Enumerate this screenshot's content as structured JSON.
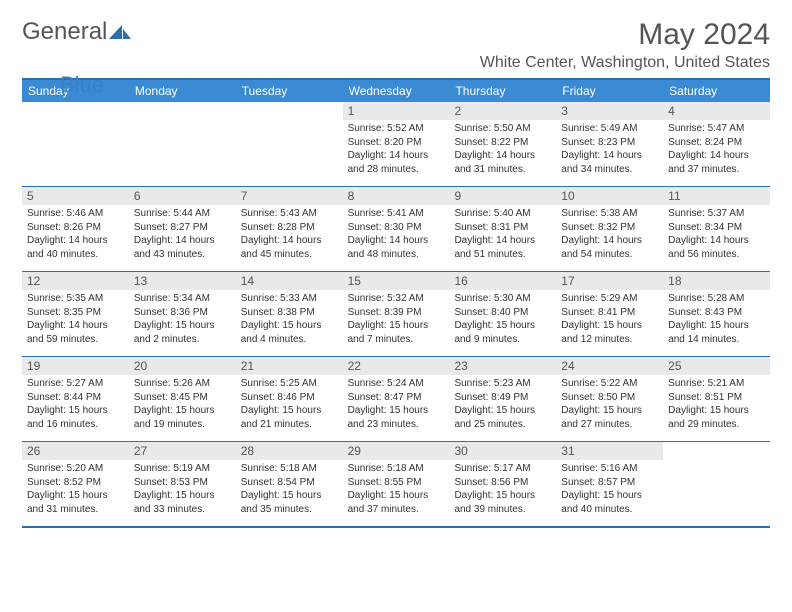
{
  "logo": {
    "word1": "General",
    "word2": "Blue"
  },
  "title": "May 2024",
  "subtitle": "White Center, Washington, United States",
  "colors": {
    "header_bg": "#3b8bd4",
    "header_border": "#2d6fb5",
    "daynum_bg": "#e9e9e9",
    "text": "#555"
  },
  "daynames": [
    "Sunday",
    "Monday",
    "Tuesday",
    "Wednesday",
    "Thursday",
    "Friday",
    "Saturday"
  ],
  "weeks": [
    [
      {
        "n": "",
        "empty": true
      },
      {
        "n": "",
        "empty": true
      },
      {
        "n": "",
        "empty": true
      },
      {
        "n": "1",
        "sunrise": "5:52 AM",
        "sunset": "8:20 PM",
        "dayh": "14",
        "daym": "28"
      },
      {
        "n": "2",
        "sunrise": "5:50 AM",
        "sunset": "8:22 PM",
        "dayh": "14",
        "daym": "31"
      },
      {
        "n": "3",
        "sunrise": "5:49 AM",
        "sunset": "8:23 PM",
        "dayh": "14",
        "daym": "34"
      },
      {
        "n": "4",
        "sunrise": "5:47 AM",
        "sunset": "8:24 PM",
        "dayh": "14",
        "daym": "37"
      }
    ],
    [
      {
        "n": "5",
        "sunrise": "5:46 AM",
        "sunset": "8:26 PM",
        "dayh": "14",
        "daym": "40"
      },
      {
        "n": "6",
        "sunrise": "5:44 AM",
        "sunset": "8:27 PM",
        "dayh": "14",
        "daym": "43"
      },
      {
        "n": "7",
        "sunrise": "5:43 AM",
        "sunset": "8:28 PM",
        "dayh": "14",
        "daym": "45"
      },
      {
        "n": "8",
        "sunrise": "5:41 AM",
        "sunset": "8:30 PM",
        "dayh": "14",
        "daym": "48"
      },
      {
        "n": "9",
        "sunrise": "5:40 AM",
        "sunset": "8:31 PM",
        "dayh": "14",
        "daym": "51"
      },
      {
        "n": "10",
        "sunrise": "5:38 AM",
        "sunset": "8:32 PM",
        "dayh": "14",
        "daym": "54"
      },
      {
        "n": "11",
        "sunrise": "5:37 AM",
        "sunset": "8:34 PM",
        "dayh": "14",
        "daym": "56"
      }
    ],
    [
      {
        "n": "12",
        "sunrise": "5:35 AM",
        "sunset": "8:35 PM",
        "dayh": "14",
        "daym": "59"
      },
      {
        "n": "13",
        "sunrise": "5:34 AM",
        "sunset": "8:36 PM",
        "dayh": "15",
        "daym": "2"
      },
      {
        "n": "14",
        "sunrise": "5:33 AM",
        "sunset": "8:38 PM",
        "dayh": "15",
        "daym": "4"
      },
      {
        "n": "15",
        "sunrise": "5:32 AM",
        "sunset": "8:39 PM",
        "dayh": "15",
        "daym": "7"
      },
      {
        "n": "16",
        "sunrise": "5:30 AM",
        "sunset": "8:40 PM",
        "dayh": "15",
        "daym": "9"
      },
      {
        "n": "17",
        "sunrise": "5:29 AM",
        "sunset": "8:41 PM",
        "dayh": "15",
        "daym": "12"
      },
      {
        "n": "18",
        "sunrise": "5:28 AM",
        "sunset": "8:43 PM",
        "dayh": "15",
        "daym": "14"
      }
    ],
    [
      {
        "n": "19",
        "sunrise": "5:27 AM",
        "sunset": "8:44 PM",
        "dayh": "15",
        "daym": "16"
      },
      {
        "n": "20",
        "sunrise": "5:26 AM",
        "sunset": "8:45 PM",
        "dayh": "15",
        "daym": "19"
      },
      {
        "n": "21",
        "sunrise": "5:25 AM",
        "sunset": "8:46 PM",
        "dayh": "15",
        "daym": "21"
      },
      {
        "n": "22",
        "sunrise": "5:24 AM",
        "sunset": "8:47 PM",
        "dayh": "15",
        "daym": "23"
      },
      {
        "n": "23",
        "sunrise": "5:23 AM",
        "sunset": "8:49 PM",
        "dayh": "15",
        "daym": "25"
      },
      {
        "n": "24",
        "sunrise": "5:22 AM",
        "sunset": "8:50 PM",
        "dayh": "15",
        "daym": "27"
      },
      {
        "n": "25",
        "sunrise": "5:21 AM",
        "sunset": "8:51 PM",
        "dayh": "15",
        "daym": "29"
      }
    ],
    [
      {
        "n": "26",
        "sunrise": "5:20 AM",
        "sunset": "8:52 PM",
        "dayh": "15",
        "daym": "31"
      },
      {
        "n": "27",
        "sunrise": "5:19 AM",
        "sunset": "8:53 PM",
        "dayh": "15",
        "daym": "33"
      },
      {
        "n": "28",
        "sunrise": "5:18 AM",
        "sunset": "8:54 PM",
        "dayh": "15",
        "daym": "35"
      },
      {
        "n": "29",
        "sunrise": "5:18 AM",
        "sunset": "8:55 PM",
        "dayh": "15",
        "daym": "37"
      },
      {
        "n": "30",
        "sunrise": "5:17 AM",
        "sunset": "8:56 PM",
        "dayh": "15",
        "daym": "39"
      },
      {
        "n": "31",
        "sunrise": "5:16 AM",
        "sunset": "8:57 PM",
        "dayh": "15",
        "daym": "40"
      },
      {
        "n": "",
        "empty": true
      }
    ]
  ]
}
